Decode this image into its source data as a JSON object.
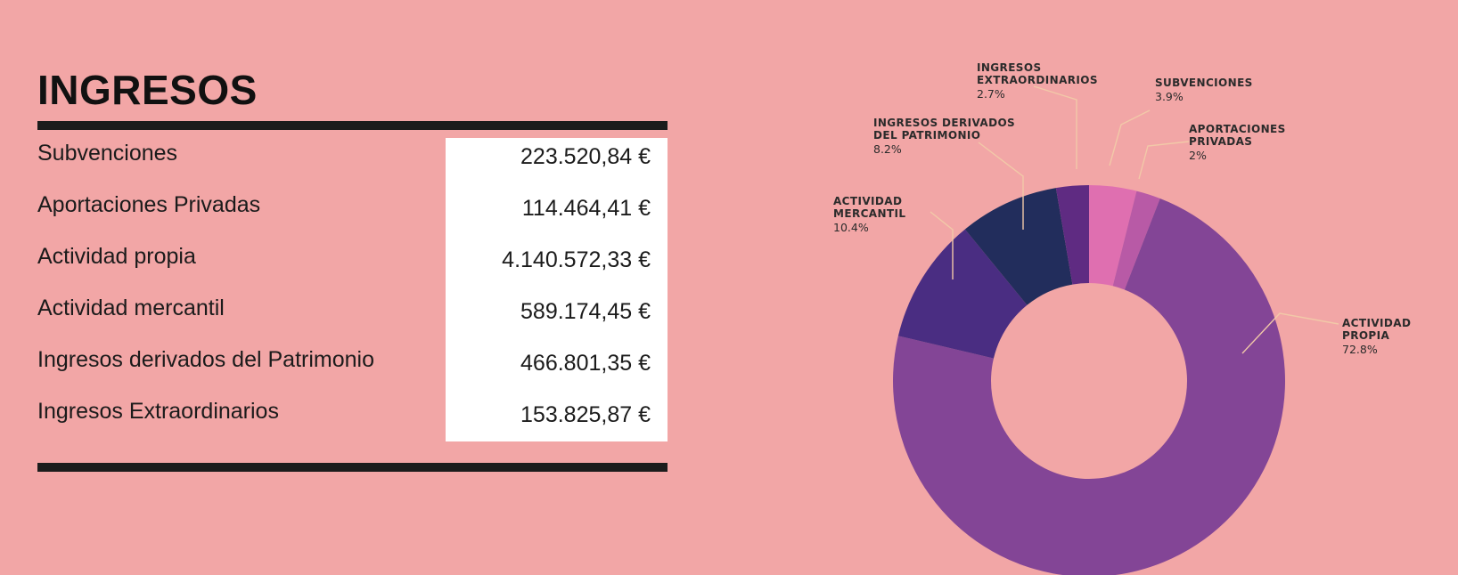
{
  "title": "INGRESOS",
  "table": [
    {
      "label": "Subvenciones",
      "value": "223.520,84 €"
    },
    {
      "label": "Aportaciones Privadas",
      "value": "114.464,41 €"
    },
    {
      "label": "Actividad propia",
      "value": "4.140.572,33 €"
    },
    {
      "label": "Actividad mercantil",
      "value": "589.174,45 €"
    },
    {
      "label": "Ingresos derivados del Patrimonio",
      "value": "466.801,35 €"
    },
    {
      "label": "Ingresos Extraordinarios",
      "value": "153.825,87 €"
    }
  ],
  "colors": {
    "background": "#f2a6a6",
    "leader": "#f2c9a8"
  },
  "chart_data": {
    "type": "pie",
    "donut": true,
    "slices": [
      {
        "label": [
          "SUBVENCIONES"
        ],
        "pct_label": "3.9%",
        "value": 3.9,
        "color": "#df6fb0"
      },
      {
        "label": [
          "APORTACIONES",
          "PRIVADAS"
        ],
        "pct_label": "2%",
        "value": 2.0,
        "color": "#b85aa6"
      },
      {
        "label": [
          "ACTIVIDAD",
          "PROPIA"
        ],
        "pct_label": "72.8%",
        "value": 72.8,
        "color": "#834596"
      },
      {
        "label": [
          "ACTIVIDAD",
          "MERCANTIL"
        ],
        "pct_label": "10.4%",
        "value": 10.4,
        "color": "#4a2d82"
      },
      {
        "label": [
          "INGRESOS DERIVADOS",
          "DEL PATRIMONIO"
        ],
        "pct_label": "8.2%",
        "value": 8.2,
        "color": "#222d5c"
      },
      {
        "label": [
          "INGRESOS",
          "EXTRAORDINARIOS"
        ],
        "pct_label": "2.7%",
        "value": 2.7,
        "color": "#5f2b82"
      }
    ]
  }
}
